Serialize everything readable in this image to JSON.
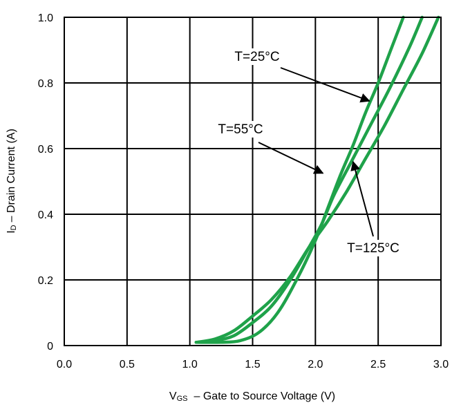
{
  "chart_data": {
    "type": "line",
    "xlabel_main": "V",
    "xlabel_sub": "GS",
    "xlabel_rest": "– Gate to Source Voltage (V)",
    "ylabel_main": "I",
    "ylabel_sub": "D",
    "ylabel_rest": "– Drain Current (A)",
    "xlim": [
      0,
      3
    ],
    "ylim": [
      0,
      1
    ],
    "x_ticks": [
      {
        "value": 0.0,
        "label": "0.0"
      },
      {
        "value": 0.5,
        "label": "0.5"
      },
      {
        "value": 1.0,
        "label": "1.0"
      },
      {
        "value": 1.5,
        "label": "1.5"
      },
      {
        "value": 2.0,
        "label": "2.0"
      },
      {
        "value": 2.5,
        "label": "2.5"
      },
      {
        "value": 3.0,
        "label": "3.0"
      }
    ],
    "y_ticks": [
      {
        "value": 0.0,
        "label": "0"
      },
      {
        "value": 0.2,
        "label": "0.2"
      },
      {
        "value": 0.4,
        "label": "0.4"
      },
      {
        "value": 0.6,
        "label": "0.6"
      },
      {
        "value": 0.8,
        "label": "0.8"
      },
      {
        "value": 1.0,
        "label": "1.0"
      }
    ],
    "grid": true,
    "line_color": "#1fa24a",
    "series": [
      {
        "name": "T=25°C",
        "x": [
          1.05,
          1.25,
          1.4,
          1.55,
          1.7,
          1.85,
          2.0,
          2.1,
          2.2,
          2.3,
          2.4,
          2.5,
          2.6,
          2.7
        ],
        "y": [
          0.01,
          0.01,
          0.015,
          0.04,
          0.1,
          0.2,
          0.32,
          0.42,
          0.52,
          0.61,
          0.71,
          0.8,
          0.9,
          1.0
        ]
      },
      {
        "name": "T=55°C",
        "x": [
          1.05,
          1.2,
          1.35,
          1.5,
          1.65,
          1.8,
          1.95,
          2.05,
          2.15,
          2.3,
          2.45,
          2.6,
          2.75,
          2.85
        ],
        "y": [
          0.01,
          0.015,
          0.03,
          0.07,
          0.12,
          0.2,
          0.3,
          0.37,
          0.46,
          0.57,
          0.68,
          0.79,
          0.91,
          1.0
        ]
      },
      {
        "name": "T=125°C",
        "x": [
          1.05,
          1.2,
          1.35,
          1.5,
          1.65,
          1.8,
          1.95,
          2.1,
          2.25,
          2.4,
          2.55,
          2.7,
          2.85,
          2.98
        ],
        "y": [
          0.01,
          0.02,
          0.045,
          0.09,
          0.14,
          0.21,
          0.3,
          0.38,
          0.47,
          0.57,
          0.67,
          0.78,
          0.89,
          1.0
        ]
      }
    ],
    "annotations": [
      {
        "text": "T=25°C",
        "series": "T=25°C",
        "arrow_to": [
          2.43,
          0.745
        ]
      },
      {
        "text": "T=55°C",
        "series": "T=55°C",
        "arrow_to": [
          2.06,
          0.525
        ]
      },
      {
        "text": "T=125°C",
        "series": "T=125°C",
        "arrow_to": [
          2.3,
          0.56
        ]
      }
    ]
  }
}
